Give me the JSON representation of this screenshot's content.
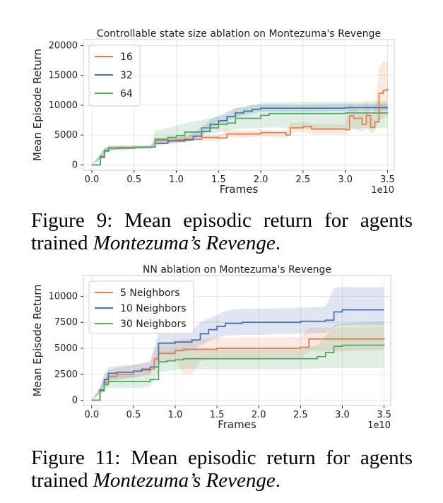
{
  "chart_data": [
    {
      "type": "line",
      "title": "Controllable state size ablation on Montezuma's Revenge",
      "xlabel": "Frames",
      "x_multiplier_label": "1e10",
      "ylabel": "Mean Episode Return",
      "xlim": [
        -0.1,
        3.58
      ],
      "ylim": [
        -900,
        21000
      ],
      "xticks": [
        0.0,
        0.5,
        1.0,
        1.5,
        2.0,
        2.5,
        3.0,
        3.5
      ],
      "xtick_labels": [
        "0.0",
        "0.5",
        "1.0",
        "1.5",
        "2.0",
        "2.5",
        "3.0",
        "3.5"
      ],
      "yticks": [
        0,
        5000,
        10000,
        15000,
        20000
      ],
      "ytick_labels": [
        "0",
        "5000",
        "10000",
        "15000",
        "20000"
      ],
      "grid": true,
      "legend": "top-left",
      "series": [
        {
          "name": "16",
          "color": "#dd8452",
          "x": [
            0,
            0.1,
            0.15,
            0.2,
            0.3,
            0.5,
            0.7,
            0.75,
            0.9,
            1.0,
            1.1,
            1.3,
            1.5,
            1.6,
            1.9,
            2.0,
            2.3,
            2.35,
            2.5,
            2.6,
            2.9,
            3.0,
            3.05,
            3.1,
            3.2,
            3.25,
            3.3,
            3.35,
            3.4,
            3.45,
            3.5
          ],
          "y": [
            0,
            1200,
            2400,
            2800,
            2900,
            2950,
            3000,
            4100,
            4100,
            4200,
            4300,
            4600,
            4500,
            5200,
            5200,
            5400,
            5000,
            6200,
            6400,
            6000,
            6000,
            5900,
            8200,
            7800,
            6800,
            8300,
            6300,
            7200,
            12000,
            12500,
            12800
          ],
          "band_low": [
            0,
            800,
            2000,
            2400,
            2600,
            2700,
            2800,
            3600,
            3700,
            3800,
            3900,
            4100,
            4000,
            4600,
            4600,
            4800,
            4500,
            5400,
            5500,
            5200,
            5200,
            5000,
            6500,
            6000,
            5500,
            6200,
            5200,
            5600,
            7500,
            7800,
            8000
          ],
          "band_high": [
            0,
            1600,
            2800,
            3200,
            3200,
            3200,
            3200,
            4600,
            4600,
            4700,
            4800,
            5100,
            5000,
            5800,
            5800,
            6000,
            5600,
            7000,
            7200,
            6800,
            6800,
            6800,
            10500,
            9800,
            8500,
            11000,
            8000,
            9500,
            16500,
            17500,
            17000
          ]
        },
        {
          "name": "32",
          "color": "#4c72b0",
          "x": [
            0,
            0.1,
            0.15,
            0.2,
            0.5,
            0.7,
            0.75,
            0.9,
            1.0,
            1.1,
            1.2,
            1.3,
            1.4,
            1.5,
            1.6,
            1.7,
            1.8,
            1.9,
            2.0,
            2.1,
            2.5,
            3.0,
            3.5
          ],
          "y": [
            0,
            1400,
            2400,
            2800,
            2950,
            3000,
            3600,
            4000,
            4000,
            4200,
            4800,
            5600,
            6800,
            7400,
            8100,
            8700,
            9000,
            9300,
            9500,
            9500,
            9500,
            9600,
            9700
          ],
          "band_low": [
            0,
            1000,
            2000,
            2400,
            2700,
            2800,
            3200,
            3500,
            3600,
            3800,
            4200,
            4900,
            6000,
            6600,
            7300,
            7900,
            8300,
            8600,
            8900,
            8900,
            8900,
            9000,
            9100
          ],
          "band_high": [
            0,
            1800,
            2800,
            3200,
            3200,
            3200,
            4000,
            4500,
            4500,
            4700,
            5400,
            6300,
            7600,
            8200,
            8900,
            9500,
            9700,
            10000,
            10100,
            10100,
            10100,
            10200,
            10300
          ]
        },
        {
          "name": "64",
          "color": "#55a868",
          "x": [
            0,
            0.1,
            0.15,
            0.2,
            0.5,
            0.7,
            0.75,
            0.9,
            1.0,
            1.1,
            1.3,
            1.5,
            1.6,
            1.7,
            2.0,
            2.1,
            2.5,
            3.0,
            3.5
          ],
          "y": [
            0,
            1300,
            2300,
            2800,
            2950,
            3000,
            4300,
            4600,
            4900,
            5500,
            6200,
            6800,
            7000,
            7800,
            8300,
            8600,
            8600,
            8700,
            8800
          ],
          "band_low": [
            0,
            900,
            1900,
            2400,
            2700,
            2800,
            3600,
            3800,
            4000,
            4400,
            5000,
            5500,
            5600,
            6000,
            6200,
            6300,
            6100,
            6000,
            6200
          ],
          "band_high": [
            0,
            1700,
            2700,
            3200,
            3200,
            3200,
            5800,
            6200,
            6600,
            7000,
            7500,
            8200,
            8500,
            9500,
            10300,
            10500,
            10600,
            10600,
            10700
          ]
        }
      ]
    },
    {
      "type": "line",
      "title": "NN ablation on Montezuma's Revenge",
      "xlabel": "Frames",
      "x_multiplier_label": "1e10",
      "ylabel": "Mean Episode Return",
      "xlim": [
        -0.1,
        3.58
      ],
      "ylim": [
        -500,
        12000
      ],
      "xticks": [
        0.0,
        0.5,
        1.0,
        1.5,
        2.0,
        2.5,
        3.0,
        3.5
      ],
      "xtick_labels": [
        "0.0",
        "0.5",
        "1.0",
        "1.5",
        "2.0",
        "2.5",
        "3.0",
        "3.5"
      ],
      "yticks": [
        0,
        2500,
        5000,
        7500,
        10000
      ],
      "ytick_labels": [
        "0",
        "2500",
        "5000",
        "7500",
        "10000"
      ],
      "grid": true,
      "legend": "top-left",
      "series": [
        {
          "name": "5 Neighbors",
          "color": "#dd8452",
          "x": [
            0,
            0.1,
            0.15,
            0.2,
            0.3,
            0.5,
            0.6,
            0.7,
            0.75,
            0.8,
            1.0,
            1.1,
            1.2,
            1.3,
            1.5,
            2.0,
            2.5,
            2.6,
            2.9,
            3.5
          ],
          "y": [
            0,
            900,
            1700,
            2300,
            2500,
            2800,
            2900,
            3000,
            4000,
            4500,
            4800,
            4900,
            4900,
            4900,
            5000,
            5000,
            5100,
            5900,
            5900,
            6000
          ],
          "band_low": [
            0,
            600,
            1200,
            1700,
            1900,
            2200,
            2300,
            2400,
            3200,
            3600,
            3900,
            2500,
            2500,
            3800,
            3900,
            3900,
            4000,
            4700,
            4700,
            4800
          ],
          "band_high": [
            0,
            1200,
            2200,
            2900,
            3100,
            3400,
            3500,
            3600,
            4800,
            5400,
            5700,
            5900,
            5900,
            5900,
            6000,
            6000,
            6100,
            7000,
            7000,
            7100
          ]
        },
        {
          "name": "10 Neighbors",
          "color": "#4c72b0",
          "x": [
            0,
            0.1,
            0.15,
            0.2,
            0.3,
            0.5,
            0.6,
            0.7,
            0.8,
            1.0,
            1.2,
            1.3,
            1.4,
            1.5,
            1.6,
            1.8,
            2.0,
            2.5,
            2.8,
            2.9,
            3.0,
            3.5
          ],
          "y": [
            0,
            1000,
            2000,
            2600,
            2700,
            2800,
            3000,
            3200,
            5500,
            5600,
            5800,
            6400,
            6800,
            7100,
            7400,
            7500,
            7500,
            7600,
            7700,
            8500,
            8700,
            8700
          ],
          "band_low": [
            0,
            700,
            1500,
            2000,
            2100,
            2200,
            2400,
            2600,
            4500,
            4600,
            4800,
            5300,
            5700,
            6000,
            6200,
            6300,
            6300,
            6400,
            6500,
            7000,
            7200,
            7200
          ],
          "band_high": [
            0,
            1300,
            2500,
            3200,
            3300,
            3400,
            3600,
            3800,
            6500,
            6600,
            6800,
            7500,
            7900,
            8200,
            8600,
            8800,
            8800,
            8900,
            9000,
            10800,
            10900,
            10900
          ]
        },
        {
          "name": "30 Neighbors",
          "color": "#55a868",
          "x": [
            0,
            0.1,
            0.15,
            0.2,
            0.3,
            0.6,
            0.7,
            0.8,
            0.9,
            1.0,
            1.1,
            1.3,
            1.5,
            2.0,
            2.5,
            2.7,
            2.8,
            2.9,
            3.0,
            3.5
          ],
          "y": [
            0,
            900,
            1500,
            1800,
            1800,
            1800,
            2000,
            3700,
            3800,
            3900,
            4000,
            4000,
            4000,
            4000,
            4000,
            4200,
            4600,
            5200,
            5300,
            5400
          ],
          "band_low": [
            0,
            600,
            1000,
            1200,
            1200,
            1200,
            1300,
            2700,
            2800,
            2900,
            3000,
            3000,
            3000,
            3000,
            3000,
            3100,
            3100,
            3100,
            3100,
            3100
          ],
          "band_high": [
            0,
            1200,
            2000,
            2400,
            2400,
            2400,
            2800,
            4600,
            4700,
            4800,
            4900,
            4900,
            4900,
            4900,
            4900,
            5300,
            6200,
            7200,
            7400,
            7600
          ]
        }
      ]
    }
  ],
  "captions": [
    {
      "label": "Figure 9:",
      "text": "Mean episodic return for agents trained",
      "italic": "Montezuma’s Revenge",
      "end": "."
    },
    {
      "label": "Figure 11:",
      "text": "Mean episodic return for agents trained",
      "italic": "Montezuma’s Revenge",
      "end": "."
    }
  ]
}
